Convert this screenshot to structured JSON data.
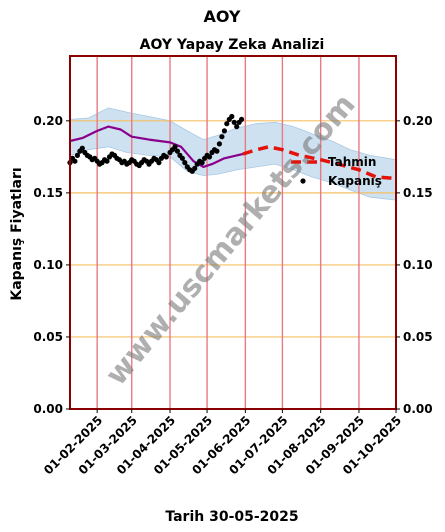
{
  "chart_data": {
    "type": "line",
    "title": "AOY",
    "subtitle": "AOY Yapay Zeka Analizi",
    "xlabel": "Tarih 30-05-2025",
    "ylabel": "Kapanış Fiyatları",
    "ylim": [
      0.0,
      0.245
    ],
    "xlim": [
      "2025-01-10",
      "2025-10-01"
    ],
    "yticks": [
      0.0,
      0.05,
      0.1,
      0.15,
      0.2
    ],
    "ytick_labels": [
      "0.00",
      "0.05",
      "0.10",
      "0.15",
      "0.20"
    ],
    "xticks": [
      "2025-02-01",
      "2025-03-01",
      "2025-04-01",
      "2025-05-01",
      "2025-06-01",
      "2025-07-01",
      "2025-08-01",
      "2025-09-01",
      "2025-10-01"
    ],
    "xtick_labels": [
      "01-02-2025",
      "01-03-2025",
      "01-04-2025",
      "01-05-2025",
      "01-06-2025",
      "01-07-2025",
      "01-08-2025",
      "01-09-2025",
      "01-10-2025"
    ],
    "legend_position": "right",
    "grid": true,
    "watermark": "www.uscmarkets.com",
    "series": [
      {
        "name": "Kapanış",
        "type": "scatter",
        "color": "#000000",
        "points": [
          [
            "2025-01-10",
            0.171
          ],
          [
            "2025-01-12",
            0.174
          ],
          [
            "2025-01-14",
            0.172
          ],
          [
            "2025-01-16",
            0.176
          ],
          [
            "2025-01-18",
            0.179
          ],
          [
            "2025-01-20",
            0.181
          ],
          [
            "2025-01-22",
            0.178
          ],
          [
            "2025-01-24",
            0.176
          ],
          [
            "2025-01-26",
            0.175
          ],
          [
            "2025-01-28",
            0.173
          ],
          [
            "2025-01-30",
            0.174
          ],
          [
            "2025-02-01",
            0.172
          ],
          [
            "2025-02-03",
            0.17
          ],
          [
            "2025-02-05",
            0.171
          ],
          [
            "2025-02-07",
            0.173
          ],
          [
            "2025-02-09",
            0.172
          ],
          [
            "2025-02-11",
            0.175
          ],
          [
            "2025-02-13",
            0.177
          ],
          [
            "2025-02-15",
            0.176
          ],
          [
            "2025-02-17",
            0.174
          ],
          [
            "2025-02-19",
            0.173
          ],
          [
            "2025-02-21",
            0.171
          ],
          [
            "2025-02-23",
            0.172
          ],
          [
            "2025-02-25",
            0.17
          ],
          [
            "2025-02-27",
            0.171
          ],
          [
            "2025-03-01",
            0.173
          ],
          [
            "2025-03-03",
            0.172
          ],
          [
            "2025-03-05",
            0.17
          ],
          [
            "2025-03-07",
            0.169
          ],
          [
            "2025-03-09",
            0.171
          ],
          [
            "2025-03-11",
            0.173
          ],
          [
            "2025-03-13",
            0.172
          ],
          [
            "2025-03-15",
            0.17
          ],
          [
            "2025-03-17",
            0.172
          ],
          [
            "2025-03-19",
            0.174
          ],
          [
            "2025-03-21",
            0.173
          ],
          [
            "2025-03-23",
            0.171
          ],
          [
            "2025-03-25",
            0.174
          ],
          [
            "2025-03-27",
            0.176
          ],
          [
            "2025-03-29",
            0.175
          ],
          [
            "2025-04-01",
            0.178
          ],
          [
            "2025-04-03",
            0.18
          ],
          [
            "2025-04-05",
            0.182
          ],
          [
            "2025-04-07",
            0.179
          ],
          [
            "2025-04-09",
            0.176
          ],
          [
            "2025-04-11",
            0.174
          ],
          [
            "2025-04-13",
            0.171
          ],
          [
            "2025-04-15",
            0.168
          ],
          [
            "2025-04-17",
            0.166
          ],
          [
            "2025-04-19",
            0.165
          ],
          [
            "2025-04-21",
            0.167
          ],
          [
            "2025-04-23",
            0.17
          ],
          [
            "2025-04-25",
            0.172
          ],
          [
            "2025-04-27",
            0.171
          ],
          [
            "2025-04-29",
            0.174
          ],
          [
            "2025-05-01",
            0.176
          ],
          [
            "2025-05-03",
            0.175
          ],
          [
            "2025-05-05",
            0.178
          ],
          [
            "2025-05-07",
            0.18
          ],
          [
            "2025-05-09",
            0.179
          ],
          [
            "2025-05-11",
            0.184
          ],
          [
            "2025-05-13",
            0.189
          ],
          [
            "2025-05-15",
            0.193
          ],
          [
            "2025-05-17",
            0.198
          ],
          [
            "2025-05-19",
            0.201
          ],
          [
            "2025-05-21",
            0.203
          ],
          [
            "2025-05-23",
            0.199
          ],
          [
            "2025-05-25",
            0.196
          ],
          [
            "2025-05-27",
            0.199
          ],
          [
            "2025-05-29",
            0.201
          ]
        ]
      },
      {
        "name": "",
        "type": "line",
        "color": "#8b008b",
        "points": [
          [
            "2025-01-10",
            0.186
          ],
          [
            "2025-01-20",
            0.188
          ],
          [
            "2025-02-01",
            0.193
          ],
          [
            "2025-02-10",
            0.196
          ],
          [
            "2025-02-20",
            0.194
          ],
          [
            "2025-03-01",
            0.189
          ],
          [
            "2025-03-15",
            0.187
          ],
          [
            "2025-04-01",
            0.185
          ],
          [
            "2025-04-10",
            0.182
          ],
          [
            "2025-04-20",
            0.172
          ],
          [
            "2025-04-28",
            0.168
          ],
          [
            "2025-05-05",
            0.17
          ],
          [
            "2025-05-15",
            0.174
          ],
          [
            "2025-05-25",
            0.176
          ],
          [
            "2025-05-30",
            0.177
          ]
        ]
      },
      {
        "name": "Tahmin",
        "type": "line",
        "style": "dashed",
        "color": "#e3120b",
        "points": [
          [
            "2025-05-30",
            0.177
          ],
          [
            "2025-06-10",
            0.18
          ],
          [
            "2025-06-20",
            0.182
          ],
          [
            "2025-07-01",
            0.18
          ],
          [
            "2025-07-15",
            0.176
          ],
          [
            "2025-08-01",
            0.173
          ],
          [
            "2025-08-15",
            0.17
          ],
          [
            "2025-09-01",
            0.166
          ],
          [
            "2025-09-15",
            0.161
          ],
          [
            "2025-10-01",
            0.16
          ]
        ]
      }
    ],
    "band": {
      "color": "#c6dcee",
      "points": [
        [
          "2025-01-10",
          0.176,
          0.201
        ],
        [
          "2025-01-25",
          0.18,
          0.202
        ],
        [
          "2025-02-10",
          0.182,
          0.209
        ],
        [
          "2025-02-25",
          0.178,
          0.206
        ],
        [
          "2025-03-15",
          0.176,
          0.203
        ],
        [
          "2025-04-01",
          0.175,
          0.2
        ],
        [
          "2025-04-15",
          0.165,
          0.193
        ],
        [
          "2025-04-28",
          0.162,
          0.187
        ],
        [
          "2025-05-10",
          0.163,
          0.19
        ],
        [
          "2025-05-25",
          0.166,
          0.195
        ],
        [
          "2025-06-10",
          0.168,
          0.198
        ],
        [
          "2025-06-25",
          0.17,
          0.199
        ],
        [
          "2025-07-10",
          0.166,
          0.196
        ],
        [
          "2025-07-25",
          0.161,
          0.191
        ],
        [
          "2025-08-10",
          0.157,
          0.186
        ],
        [
          "2025-08-25",
          0.152,
          0.18
        ],
        [
          "2025-09-10",
          0.147,
          0.176
        ],
        [
          "2025-10-01",
          0.145,
          0.173
        ]
      ]
    }
  }
}
